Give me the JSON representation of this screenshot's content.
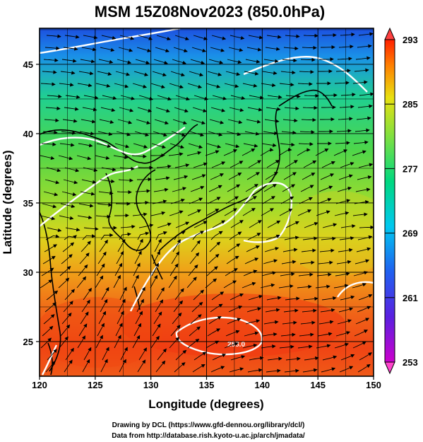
{
  "title": "MSM 15Z08Nov2023 (850.0hPa)",
  "axes": {
    "xlabel": "Longitude (degrees)",
    "ylabel": "Latitude  (degrees)",
    "xrange": [
      120,
      150
    ],
    "yrange": [
      22.5,
      47.6
    ],
    "xticks": [
      "120",
      "125",
      "130",
      "135",
      "140",
      "145",
      "150"
    ],
    "yticks": [
      "25",
      "30",
      "35",
      "40",
      "45"
    ],
    "grid": true
  },
  "colorbar": {
    "ticks": [
      "293",
      "285",
      "277",
      "269",
      "261",
      "253"
    ],
    "min": 253,
    "max": 293,
    "colors": [
      "#cc00cc",
      "#4040ff",
      "#00c8ff",
      "#00e080",
      "#80e040",
      "#e0e000",
      "#ff8000",
      "#ff2000"
    ]
  },
  "credits": {
    "line1": "Drawing by DCL (https://www.gfd-dennou.org/library/dcl/)",
    "line2": "Data from http://database.rish.kyoto-u.ac.jp/arch/jmadata/"
  },
  "contour_label": "288.0"
}
